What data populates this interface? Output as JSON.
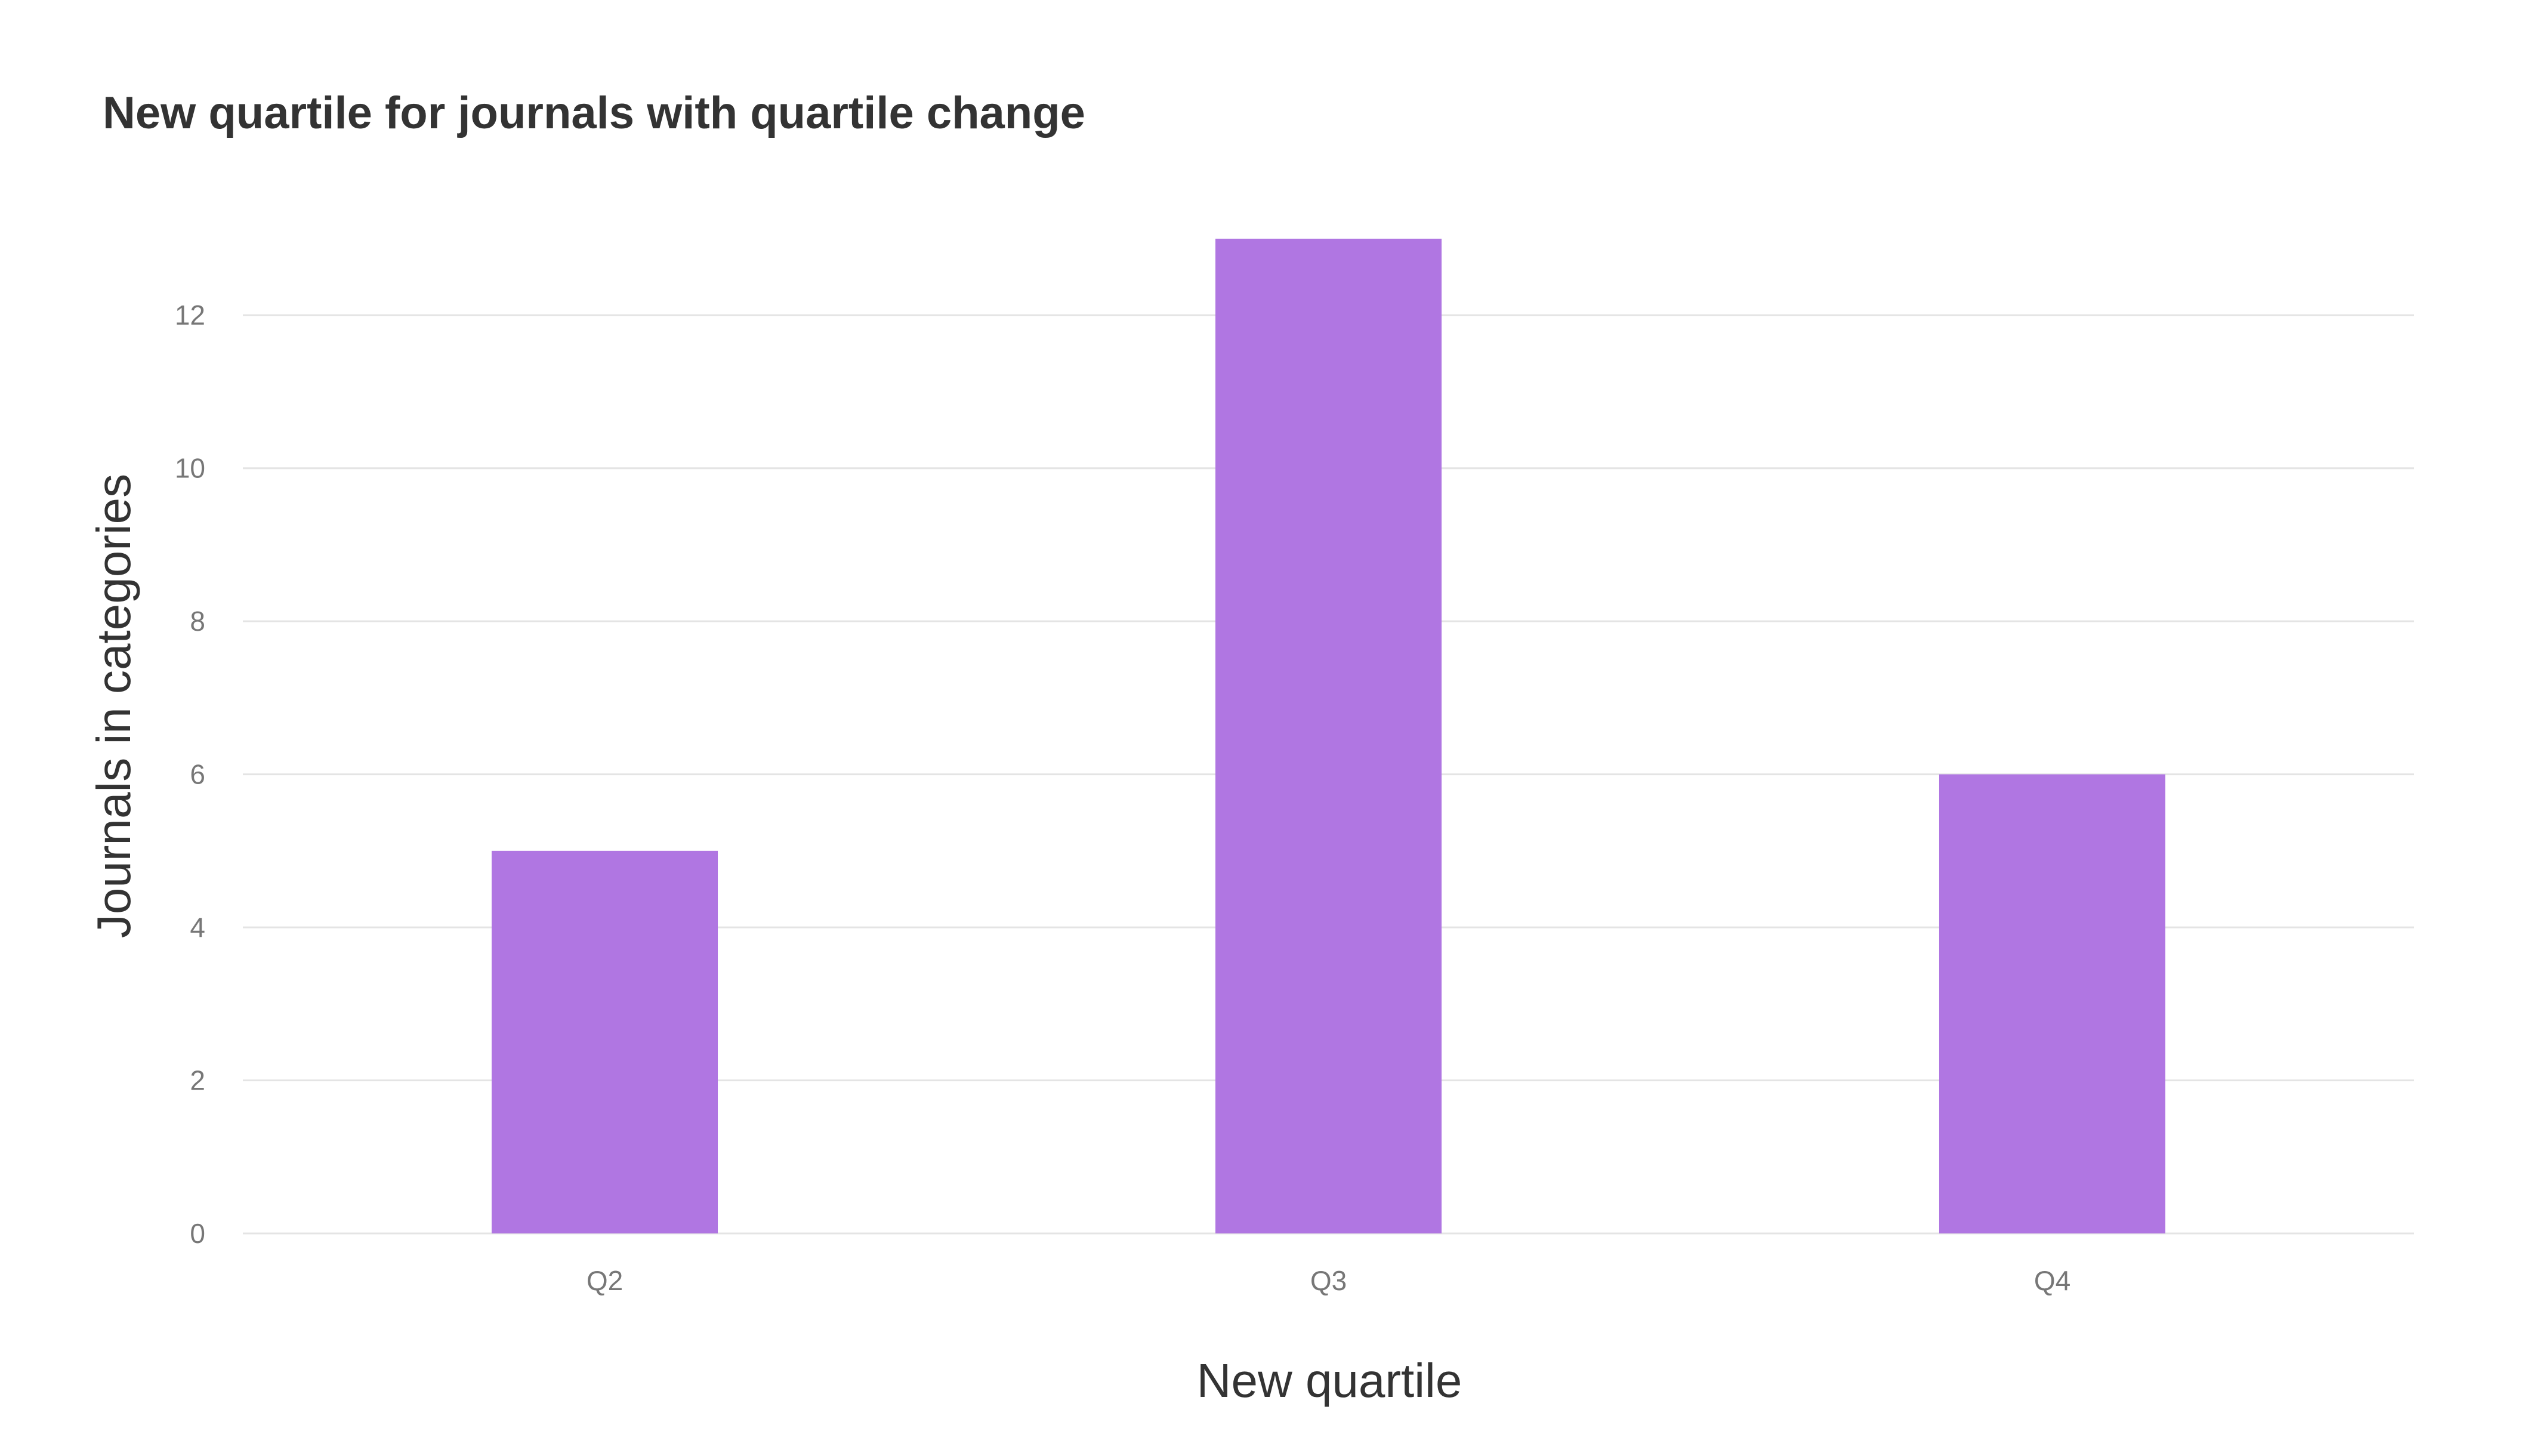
{
  "chart_data": {
    "type": "bar",
    "title": "New quartile for journals with quartile change",
    "xlabel": "New quartile",
    "ylabel": "Journals in categories",
    "categories": [
      "Q2",
      "Q3",
      "Q4"
    ],
    "values": [
      5,
      13,
      6
    ],
    "ylim": [
      0,
      13
    ],
    "yticks": [
      0,
      2,
      4,
      6,
      8,
      10,
      12
    ],
    "grid": true,
    "bar_color": "#b076e2"
  }
}
